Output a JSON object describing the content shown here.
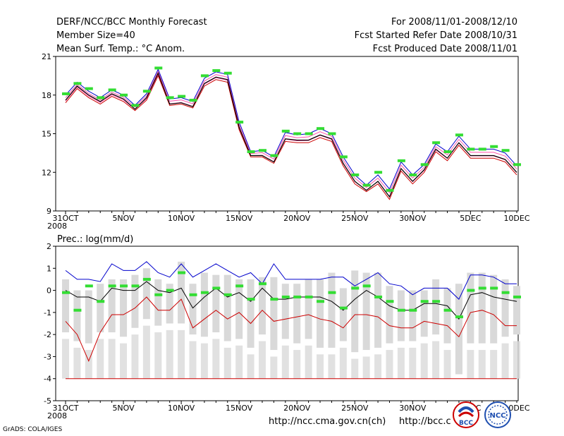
{
  "header": {
    "title": "DERF/NCC/BCC Monthly Forecast",
    "member_size": "Member Size=40",
    "variable1": "Mean Surf. Temp.: °C Anom.",
    "period": "For 2008/11/01-2008/12/10",
    "fcst_started": "Fcst Started Refer Date 2008/10/31",
    "fcst_produced": "Fcst Produced Date 2008/11/01"
  },
  "footer": {
    "grads": "GrADS: COLA/IGES",
    "url1": "http://ncc.cma.gov.cn(ch)",
    "url2": "http://bcc.c"
  },
  "logos": {
    "left": "BCC",
    "right": "NCC"
  },
  "colors": {
    "ensemble_mean": "#000000",
    "max": "#0000cc",
    "min": "#cc0000",
    "member_mid": "#ff55aa",
    "observed": "#33dd33",
    "bar": "#d9d9d9"
  },
  "chart_data": [
    {
      "type": "line",
      "title": "Mean Surf. Temp.: °C Anom.",
      "x_tick_labels": [
        "31OCT",
        "5NOV",
        "10NOV",
        "15NOV",
        "20NOV",
        "25NOV",
        "30NOV",
        "5DEC",
        "10DEC"
      ],
      "x_year_label": "2008",
      "ylim": [
        9,
        21
      ],
      "yticks": [
        9,
        12,
        15,
        18,
        21
      ],
      "series": [
        {
          "name": "ensemble_mean",
          "values": [
            17.6,
            18.7,
            18.0,
            17.5,
            18.1,
            17.7,
            16.9,
            17.8,
            19.7,
            17.3,
            17.4,
            17.1,
            18.9,
            19.4,
            19.2,
            15.5,
            13.3,
            13.3,
            12.8,
            14.6,
            14.5,
            14.5,
            14.9,
            14.6,
            12.7,
            11.3,
            10.6,
            11.3,
            10.1,
            12.3,
            11.3,
            12.2,
            13.8,
            13.1,
            14.3,
            13.3,
            13.3,
            13.3,
            13.0,
            12.0
          ]
        },
        {
          "name": "max",
          "values": [
            18.0,
            19.0,
            18.3,
            17.8,
            18.4,
            18.0,
            17.2,
            18.1,
            20.0,
            17.7,
            17.8,
            17.5,
            19.3,
            19.8,
            19.6,
            15.9,
            13.6,
            13.7,
            13.2,
            15.1,
            14.9,
            15.0,
            15.4,
            15.0,
            13.2,
            11.8,
            11.0,
            11.8,
            10.7,
            12.8,
            11.8,
            12.6,
            14.2,
            13.6,
            14.8,
            13.8,
            13.8,
            13.8,
            13.5,
            12.5
          ]
        },
        {
          "name": "min",
          "values": [
            17.4,
            18.5,
            17.8,
            17.3,
            17.9,
            17.5,
            16.8,
            17.6,
            19.5,
            17.2,
            17.3,
            17.0,
            18.7,
            19.2,
            19.0,
            15.3,
            13.2,
            13.2,
            12.7,
            14.4,
            14.3,
            14.3,
            14.7,
            14.4,
            12.5,
            11.1,
            10.5,
            11.1,
            9.9,
            12.1,
            11.1,
            12.0,
            13.6,
            12.9,
            14.1,
            13.1,
            13.1,
            13.1,
            12.8,
            11.8
          ]
        },
        {
          "name": "observed",
          "values": [
            18.1,
            18.9,
            18.5,
            17.8,
            18.4,
            18.0,
            17.2,
            18.3,
            20.1,
            17.8,
            17.9,
            17.6,
            19.5,
            19.9,
            19.7,
            15.9,
            13.6,
            13.7,
            13.3,
            15.2,
            15.0,
            15.0,
            15.4,
            15.0,
            13.2,
            11.8,
            11.0,
            12.0,
            10.6,
            12.9,
            11.8,
            12.6,
            14.3,
            13.6,
            14.9,
            13.8,
            13.8,
            14.0,
            13.7,
            12.6
          ]
        }
      ]
    },
    {
      "type": "line",
      "title": "Prec.: log(mm/d)",
      "x_tick_labels": [
        "31OCT",
        "5NOV",
        "10NOV",
        "15NOV",
        "20NOV",
        "25NOV",
        "30NOV",
        "5DEC",
        "10DEC"
      ],
      "x_year_label": "2008",
      "ylim": [
        -5,
        2
      ],
      "yticks": [
        -5,
        -4,
        -3,
        -2,
        -1,
        0,
        1,
        2
      ],
      "series": [
        {
          "name": "max",
          "values": [
            0.9,
            0.5,
            0.5,
            0.4,
            1.2,
            0.9,
            0.9,
            1.3,
            0.8,
            0.6,
            1.2,
            0.6,
            0.9,
            1.2,
            0.9,
            0.6,
            0.8,
            0.3,
            1.2,
            0.5,
            0.5,
            0.5,
            0.5,
            0.6,
            0.6,
            0.2,
            0.5,
            0.8,
            0.3,
            0.2,
            -0.2,
            0.1,
            0.1,
            0.1,
            -0.4,
            0.7,
            0.7,
            0.6,
            0.3,
            0.3
          ]
        },
        {
          "name": "ensemble_mean",
          "values": [
            0.0,
            -0.3,
            -0.3,
            -0.5,
            0.1,
            0.0,
            0.0,
            0.4,
            0.0,
            -0.1,
            0.1,
            -0.8,
            -0.3,
            0.1,
            -0.3,
            -0.1,
            -0.5,
            0.1,
            -0.4,
            -0.4,
            -0.3,
            -0.3,
            -0.3,
            -0.5,
            -0.9,
            -0.4,
            0.0,
            -0.3,
            -0.7,
            -0.9,
            -0.9,
            -0.6,
            -0.6,
            -0.7,
            -1.3,
            -0.2,
            -0.1,
            -0.3,
            -0.4,
            -0.5
          ]
        },
        {
          "name": "min",
          "values": [
            -1.4,
            -2.0,
            -3.2,
            -1.9,
            -1.1,
            -1.1,
            -0.8,
            -0.3,
            -0.9,
            -0.9,
            -0.4,
            -1.7,
            -1.3,
            -0.9,
            -1.3,
            -1.0,
            -1.5,
            -0.9,
            -1.4,
            -1.3,
            -1.2,
            -1.1,
            -1.3,
            -1.4,
            -1.7,
            -1.1,
            -1.1,
            -1.2,
            -1.6,
            -1.7,
            -1.7,
            -1.4,
            -1.5,
            -1.6,
            -2.1,
            -1.0,
            -0.9,
            -1.1,
            -1.6,
            -1.6
          ]
        },
        {
          "name": "lower_bound",
          "values": [
            -4,
            -4,
            -4,
            -4,
            -4,
            -4,
            -4,
            -4,
            -4,
            -4,
            -4,
            -4,
            -4,
            -4,
            -4,
            -4,
            -4,
            -4,
            -4,
            -4,
            -4,
            -4,
            -4,
            -4,
            -4,
            -4,
            -4,
            -4,
            -4,
            -4,
            -4,
            -4,
            -4,
            -4,
            -4,
            -4,
            -4,
            -4,
            -4,
            -4
          ]
        },
        {
          "name": "observed",
          "values": [
            -0.1,
            -0.9,
            0.2,
            -0.5,
            0.2,
            0.2,
            0.2,
            0.5,
            -0.2,
            0.0,
            0.8,
            -0.2,
            -0.1,
            0.1,
            -0.2,
            0.2,
            -0.4,
            0.3,
            -0.4,
            -0.3,
            -0.3,
            -0.3,
            -0.5,
            -0.1,
            -0.8,
            0.1,
            0.2,
            -0.3,
            -0.5,
            -0.9,
            -0.9,
            -0.5,
            -0.5,
            -0.9,
            -1.2,
            0.0,
            0.1,
            0.1,
            -0.1,
            -0.3
          ]
        },
        {
          "name": "bar_top",
          "values": [
            0.5,
            0.0,
            0.0,
            0.3,
            0.5,
            0.5,
            0.7,
            1.0,
            0.5,
            0.3,
            1.3,
            0.3,
            0.8,
            0.7,
            0.7,
            0.5,
            0.5,
            0.6,
            0.6,
            0.3,
            0.3,
            0.5,
            0.5,
            0.8,
            0.1,
            0.9,
            0.8,
            0.8,
            0.2,
            0.0,
            0.0,
            0.0,
            0.5,
            0.1,
            0.3,
            0.8,
            0.8,
            0.7,
            0.5,
            0.2
          ]
        },
        {
          "name": "bar_bottom",
          "values": [
            -1.9,
            -2.3,
            -2.4,
            -1.9,
            -1.9,
            -2.1,
            -1.7,
            -1.3,
            -1.6,
            -1.5,
            -1.5,
            -2.0,
            -2.1,
            -1.9,
            -2.3,
            -2.2,
            -2.6,
            -2.0,
            -2.7,
            -2.2,
            -2.4,
            -2.2,
            -2.6,
            -2.6,
            -2.3,
            -2.8,
            -2.7,
            -2.6,
            -2.4,
            -2.3,
            -2.3,
            -2.1,
            -2.0,
            -2.4,
            -3.8,
            -2.4,
            -2.4,
            -2.4,
            -2.1,
            -2.0
          ]
        }
      ]
    }
  ]
}
